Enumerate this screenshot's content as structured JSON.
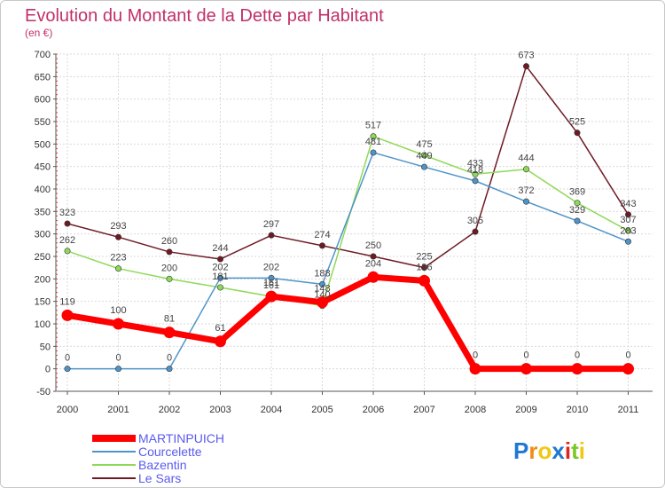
{
  "chart_data": {
    "type": "line",
    "title": "Evolution du Montant de la Dette par Habitant",
    "subtitle": "(en €)",
    "categories": [
      "2000",
      "2001",
      "2002",
      "2003",
      "2004",
      "2005",
      "2006",
      "2007",
      "2008",
      "2009",
      "2010",
      "2011"
    ],
    "ylim": [
      -50,
      700
    ],
    "yticks": [
      "-50",
      "0",
      "50",
      "100",
      "150",
      "200",
      "250",
      "300",
      "350",
      "400",
      "450",
      "500",
      "550",
      "600",
      "650",
      "700"
    ],
    "grid": true,
    "legend_position": "bottom-left",
    "series": [
      {
        "name": "Le Sars",
        "color": "#6e1a24",
        "values": [
          323,
          293,
          260,
          244,
          297,
          274,
          250,
          225,
          305,
          673,
          525,
          343
        ]
      },
      {
        "name": "Bazentin",
        "color": "#8fd958",
        "values": [
          262,
          223,
          200,
          181,
          161,
          140,
          517,
          475,
          433,
          444,
          369,
          307
        ]
      },
      {
        "name": "Courcelette",
        "color": "#4f94c8",
        "values": [
          0,
          0,
          0,
          202,
          202,
          188,
          481,
          449,
          418,
          372,
          329,
          283
        ]
      },
      {
        "name": "MARTINPUICH",
        "color": "#ff0000",
        "values": [
          119,
          100,
          81,
          61,
          161,
          148,
          204,
          196,
          0,
          0,
          0,
          0
        ]
      }
    ]
  },
  "logo": {
    "letters": [
      "P",
      "r",
      "o",
      "x",
      "i",
      "t",
      "i"
    ],
    "colors": [
      "#1e78d2",
      "#f08c14",
      "#f0c814",
      "#1e78d2",
      "#e0231e",
      "#78c828",
      "#f0c814"
    ]
  }
}
